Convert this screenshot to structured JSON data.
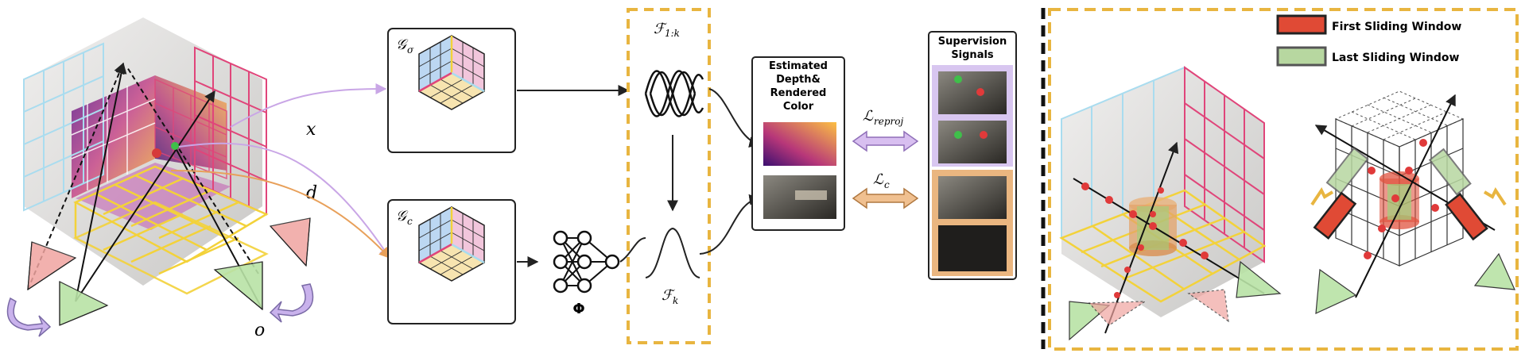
{
  "labels": {
    "x": "x",
    "d": "d",
    "o": "o",
    "phi": "Φ",
    "g_sigma": "𝒢",
    "g_sigma_sub": "σ",
    "g_c": "𝒢",
    "g_c_sub": "c",
    "f_1k": "ℱ",
    "f_1k_sub": "1:k",
    "f_k": "ℱ",
    "f_k_sub": "k",
    "estimated_line1": "Estimated",
    "estimated_line2": "Depth&",
    "estimated_line3": "Rendered",
    "estimated_line4": "Color",
    "supervision_line1": "Supervision",
    "supervision_line2": "Signals",
    "l_reproj": "ℒ",
    "l_reproj_sub": "reproj",
    "l_c": "ℒ",
    "l_c_sub": "c"
  },
  "legend": {
    "first": "First Sliding Window",
    "last": "Last Sliding Window"
  },
  "colors": {
    "grid_blue": "#a9dcef",
    "grid_pink": "#e0457a",
    "grid_yellow": "#f3d23a",
    "face_blue": "#bcd7f2",
    "face_pink": "#f2c6dc",
    "face_yellow": "#f7e4b0",
    "dash_orange": "#e8b540",
    "arrow_purple": "#c9a6e6",
    "arrow_orange": "#e8a05a",
    "red_window": "#e04a35",
    "green_window": "#b7d7a0"
  }
}
